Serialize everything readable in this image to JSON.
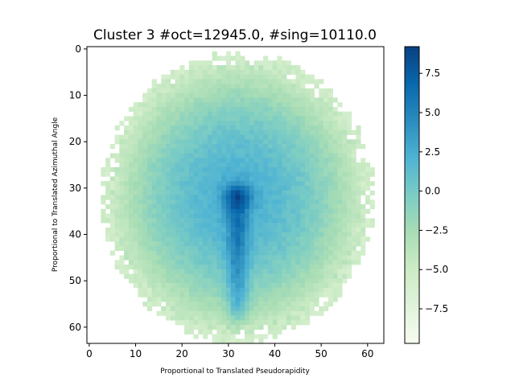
{
  "chart_data": {
    "type": "heatmap",
    "title": "Cluster 3 #oct=12945.0, #sing=10110.0",
    "xlabel": "Proportional to Translated Pseudorapidity",
    "ylabel": "Proportional to Translated Azimuthal Angle",
    "grid_shape": [
      64,
      64
    ],
    "xlim": [
      -0.5,
      63.5
    ],
    "ylim": [
      63.5,
      -0.5
    ],
    "x_ticks": [
      0,
      10,
      20,
      30,
      40,
      50,
      60
    ],
    "y_ticks": [
      0,
      10,
      20,
      30,
      40,
      50,
      60
    ],
    "x_tick_labels": [
      "0",
      "10",
      "20",
      "30",
      "40",
      "50",
      "60"
    ],
    "y_tick_labels": [
      "0",
      "10",
      "20",
      "30",
      "40",
      "50",
      "60"
    ],
    "colormap": "GnBu",
    "color_range": [
      -9.7,
      9.2
    ],
    "colorbar_ticks": [
      7.5,
      5.0,
      2.5,
      0.0,
      -2.5,
      -5.0,
      -7.5
    ],
    "colorbar_tick_labels": [
      "7.5",
      "5.0",
      "2.5",
      "0.0",
      "−2.5",
      "−5.0",
      "−7.5"
    ],
    "distribution": {
      "support_ellipse": {
        "center_x": 32,
        "center_y": 32,
        "radius_x": 29,
        "radius_y": 31
      },
      "peak": {
        "x": 32,
        "y": 32,
        "value": 9.2
      },
      "ridge": {
        "x": 32,
        "y_from": 34,
        "y_to": 60,
        "value": 6.0
      },
      "edge_value": -6.0
    }
  }
}
